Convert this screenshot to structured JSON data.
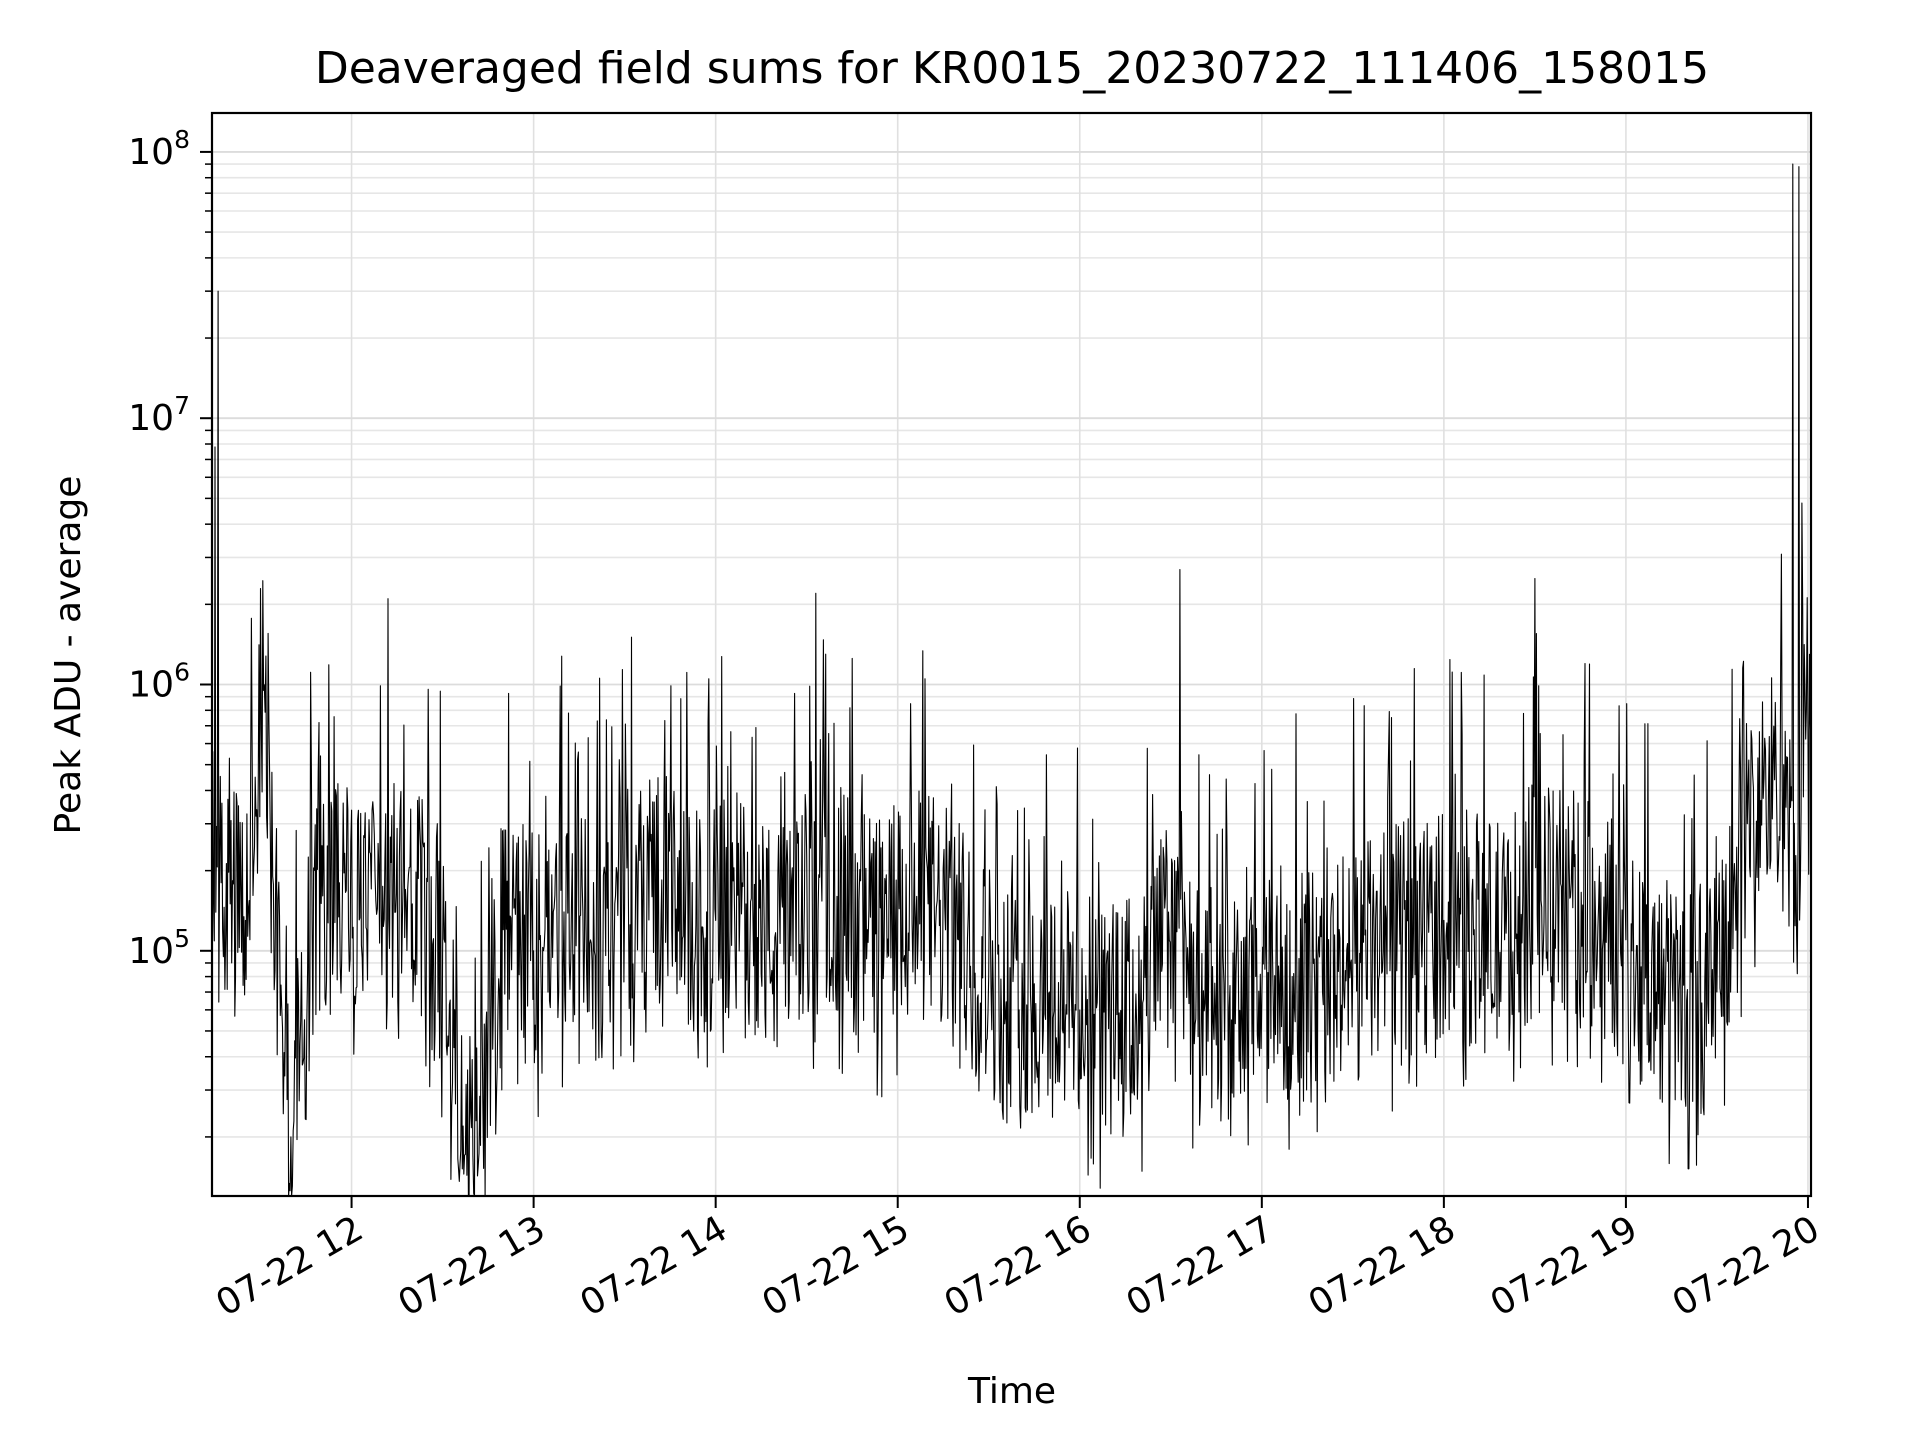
{
  "chart_data": {
    "type": "line",
    "title": "Deaveraged field sums for KR0015_20230722_111406_158015",
    "xlabel": "Time",
    "ylabel": "Peak ADU - average",
    "x_ticks": [
      "07-22 12",
      "07-22 13",
      "07-22 14",
      "07-22 15",
      "07-22 16",
      "07-22 17",
      "07-22 18",
      "07-22 19",
      "07-22 20"
    ],
    "y_ticks": [
      {
        "base": "10",
        "exp": "5"
      },
      {
        "base": "10",
        "exp": "6"
      },
      {
        "base": "10",
        "exp": "7"
      },
      {
        "base": "10",
        "exp": "8"
      }
    ],
    "xlim": [
      "2023-07-22 11:14",
      "2023-07-22 20:01"
    ],
    "ylim": [
      12000,
      140000000
    ],
    "yscale": "log",
    "grid": true,
    "legend": "none",
    "line_color": "#000000",
    "series": [
      {
        "values": [
          [
            "2023-07-22 11:14",
            250000
          ],
          [
            "2023-07-22 11:15",
            7800000
          ],
          [
            "2023-07-22 11:16",
            30000000
          ],
          [
            "2023-07-22 11:17",
            180000
          ],
          [
            "2023-07-22 11:20",
            150000
          ],
          [
            "2023-07-22 11:25",
            130000
          ],
          [
            "2023-07-22 11:31",
            950000
          ],
          [
            "2023-07-22 11:37",
            60000
          ],
          [
            "2023-07-22 11:40",
            20000
          ],
          [
            "2023-07-22 11:47",
            130000
          ],
          [
            "2023-07-22 11:56",
            180000
          ],
          [
            "2023-07-22 12:05",
            120000
          ],
          [
            "2023-07-22 12:12",
            2100000
          ],
          [
            "2023-07-22 12:20",
            150000
          ],
          [
            "2023-07-22 12:30",
            100000
          ],
          [
            "2023-07-22 12:40",
            17000
          ],
          [
            "2023-07-22 12:50",
            120000
          ],
          [
            "2023-07-22 13:00",
            100000
          ],
          [
            "2023-07-22 13:10",
            140000
          ],
          [
            "2023-07-22 13:20",
            100000
          ],
          [
            "2023-07-22 13:30",
            150000
          ],
          [
            "2023-07-22 13:40",
            200000
          ],
          [
            "2023-07-22 13:50",
            120000
          ],
          [
            "2023-07-22 14:00",
            130000
          ],
          [
            "2023-07-22 14:10",
            150000
          ],
          [
            "2023-07-22 14:20",
            100000
          ],
          [
            "2023-07-22 14:33",
            2200000
          ],
          [
            "2023-07-22 14:40",
            160000
          ],
          [
            "2023-07-22 14:50",
            120000
          ],
          [
            "2023-07-22 15:00",
            130000
          ],
          [
            "2023-07-22 15:10",
            150000
          ],
          [
            "2023-07-22 15:20",
            110000
          ],
          [
            "2023-07-22 15:30",
            80000
          ],
          [
            "2023-07-22 15:40",
            60000
          ],
          [
            "2023-07-22 15:50",
            70000
          ],
          [
            "2023-07-22 16:00",
            60000
          ],
          [
            "2023-07-22 16:10",
            55000
          ],
          [
            "2023-07-22 16:20",
            60000
          ],
          [
            "2023-07-22 16:33",
            2700000
          ],
          [
            "2023-07-22 16:40",
            50000
          ],
          [
            "2023-07-22 16:50",
            55000
          ],
          [
            "2023-07-22 17:00",
            65000
          ],
          [
            "2023-07-22 17:10",
            80000
          ],
          [
            "2023-07-22 17:20",
            70000
          ],
          [
            "2023-07-22 17:30",
            90000
          ],
          [
            "2023-07-22 17:40",
            100000
          ],
          [
            "2023-07-22 17:50",
            120000
          ],
          [
            "2023-07-22 18:00",
            130000
          ],
          [
            "2023-07-22 18:10",
            120000
          ],
          [
            "2023-07-22 18:20",
            110000
          ],
          [
            "2023-07-22 18:30",
            2500000
          ],
          [
            "2023-07-22 18:40",
            150000
          ],
          [
            "2023-07-22 18:50",
            130000
          ],
          [
            "2023-07-22 19:00",
            110000
          ],
          [
            "2023-07-22 19:10",
            70000
          ],
          [
            "2023-07-22 19:20",
            65000
          ],
          [
            "2023-07-22 19:30",
            70000
          ],
          [
            "2023-07-22 19:40",
            300000
          ],
          [
            "2023-07-22 19:47",
            400000
          ],
          [
            "2023-07-22 19:52",
            500000
          ],
          [
            "2023-07-22 19:55",
            90000000
          ],
          [
            "2023-07-22 19:57",
            88000000
          ],
          [
            "2023-07-22 19:58",
            4800000
          ],
          [
            "2023-07-22 19:59",
            1000000
          ],
          [
            "2023-07-22 20:01",
            600000
          ]
        ]
      }
    ]
  }
}
